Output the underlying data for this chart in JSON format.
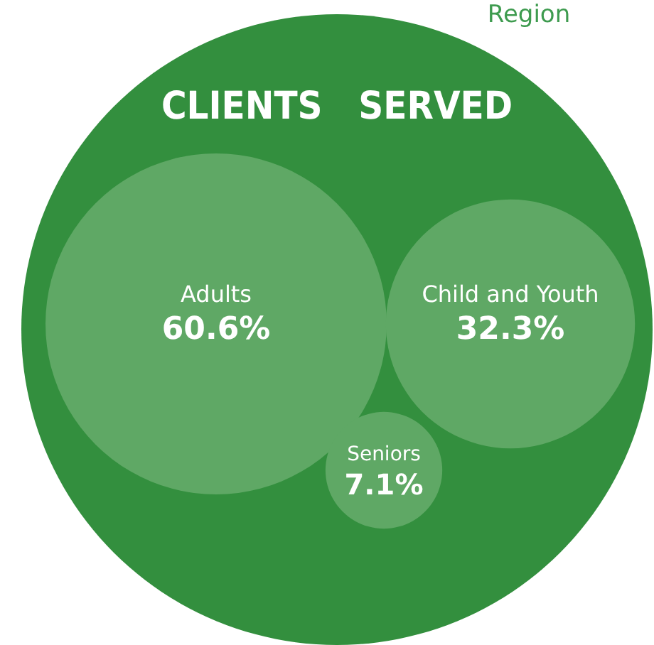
{
  "chart_data": {
    "type": "other",
    "title": "CLIENTS   SERVED",
    "annotations": [
      "Region"
    ],
    "categories": [
      "Adults",
      "Child and Youth",
      "Seniors"
    ],
    "values": [
      60.6,
      32.3,
      7.1
    ],
    "value_labels": [
      "60.6%",
      "32.3%",
      "7.1%"
    ],
    "colors": [
      "#5fa865",
      "#5fa865",
      "#5fa865"
    ]
  }
}
